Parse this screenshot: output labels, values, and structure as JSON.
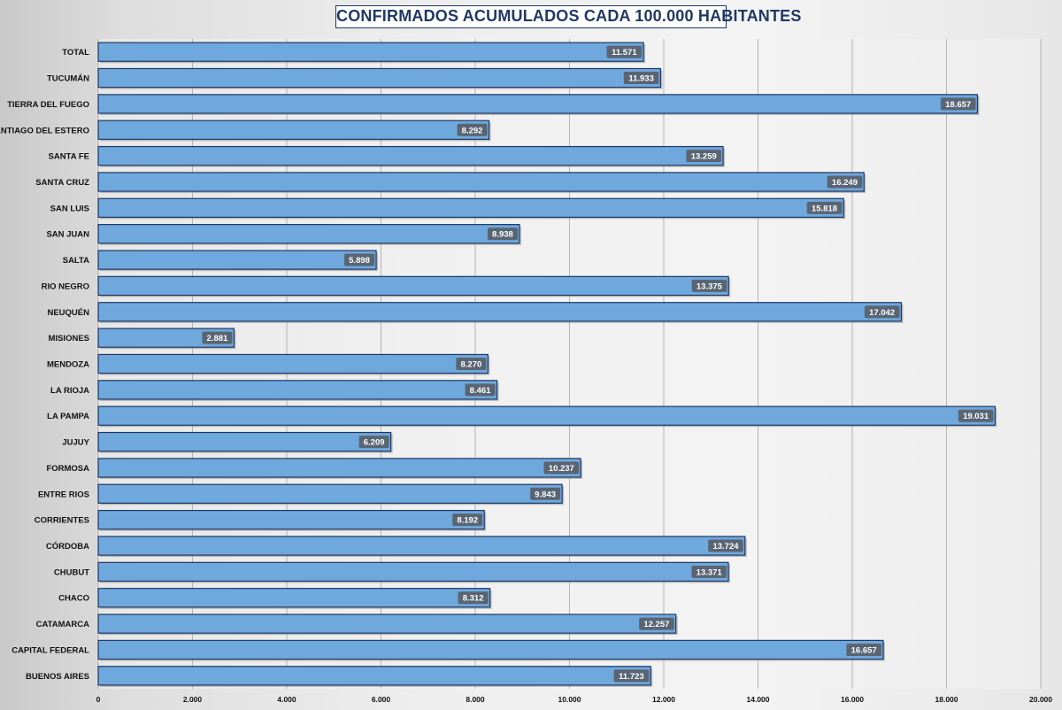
{
  "title": "CONFIRMADOS ACUMULADOS CADA 100.000 HABITANTES",
  "colors": {
    "bar_fill": "#6fa8dc",
    "bar_stroke": "#1f3864",
    "label_box": "#596573",
    "title_text": "#1f3864",
    "grid": "#a6a6a6"
  },
  "chart_data": {
    "type": "bar",
    "orientation": "horizontal",
    "title": "CONFIRMADOS ACUMULADOS CADA 100.000 HABITANTES",
    "categories": [
      "TOTAL",
      "TUCUMÁN",
      "TIERRA  DEL FUEGO",
      "SANTIAGO  DEL ESTERO",
      "SANTA FE",
      "SANTA CRUZ",
      "SAN LUIS",
      "SAN JUAN",
      "SALTA",
      "RIO NEGRO",
      "NEUQUÉN",
      "MISIONES",
      "MENDOZA",
      "LA RIOJA",
      "LA PAMPA",
      "JUJUY",
      "FORMOSA",
      "ENTRE RIOS",
      "CORRIENTES",
      "CÓRDOBA",
      "CHUBUT",
      "CHACO",
      "CATAMARCA",
      "CAPITAL  FEDERAL",
      "BUENOS  AIRES"
    ],
    "values": [
      11571,
      11933,
      18657,
      8292,
      13259,
      16249,
      15818,
      8938,
      5898,
      13375,
      17042,
      2881,
      8270,
      8461,
      19031,
      6209,
      10237,
      9843,
      8192,
      13724,
      13371,
      8312,
      12257,
      16657,
      11723
    ],
    "value_labels": [
      "11.571",
      "11.933",
      "18.657",
      "8.292",
      "13.259",
      "16.249",
      "15.818",
      "8.938",
      "5.898",
      "13.375",
      "17.042",
      "2.881",
      "8.270",
      "8.461",
      "19.031",
      "6.209",
      "10.237",
      "9.843",
      "8.192",
      "13.724",
      "13.371",
      "8.312",
      "12.257",
      "16.657",
      "11.723"
    ],
    "xlim": [
      0,
      20000
    ],
    "xticks": [
      0,
      2000,
      4000,
      6000,
      8000,
      10000,
      12000,
      14000,
      16000,
      18000,
      20000
    ],
    "xtick_labels": [
      "0",
      "2.000",
      "4.000",
      "6.000",
      "8.000",
      "10.000",
      "12.000",
      "14.000",
      "16.000",
      "18.000",
      "20.000"
    ],
    "grid": "vertical",
    "legend": "none",
    "data_labels": "inside-end"
  }
}
